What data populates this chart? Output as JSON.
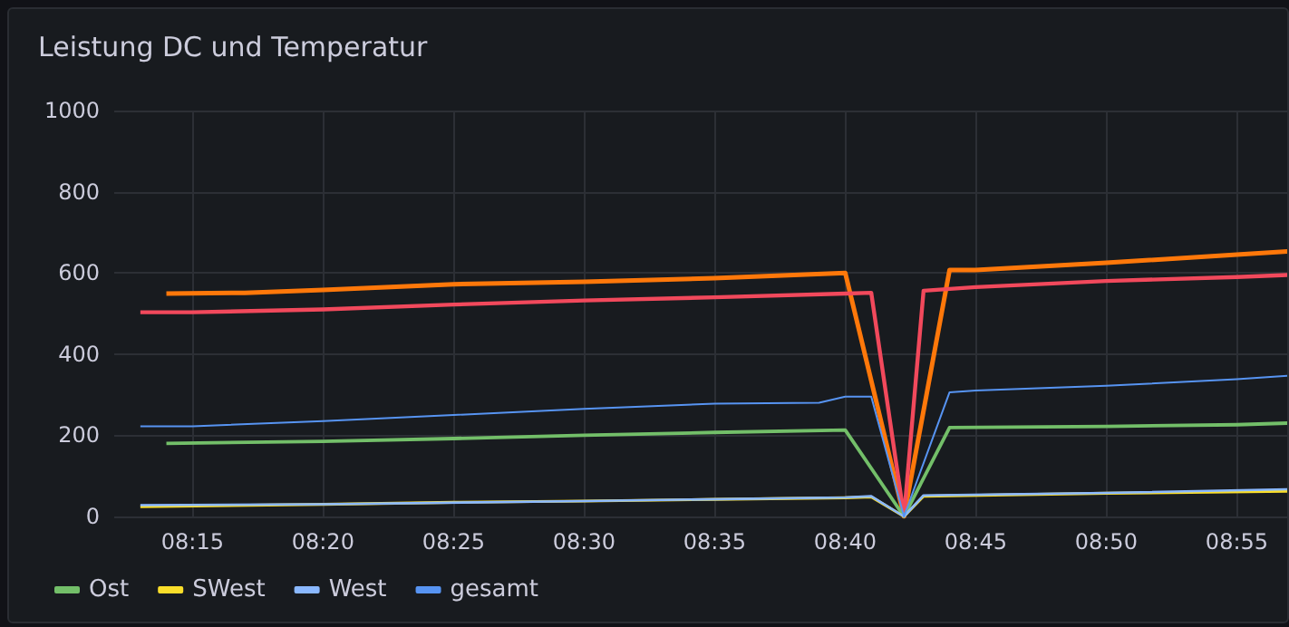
{
  "chart_data": {
    "type": "line",
    "title": "Leistung DC und Temperatur",
    "xlim": [
      8.2,
      8.95
    ],
    "xticks": [
      {
        "value": 8.25,
        "label": "08:15"
      },
      {
        "value": 8.3333,
        "label": "08:20"
      },
      {
        "value": 8.4167,
        "label": "08:25"
      },
      {
        "value": 8.5,
        "label": "08:30"
      },
      {
        "value": 8.5833,
        "label": "08:35"
      },
      {
        "value": 8.6667,
        "label": "08:40"
      },
      {
        "value": 8.75,
        "label": "08:45"
      },
      {
        "value": 8.8333,
        "label": "08:50"
      },
      {
        "value": 8.9167,
        "label": "08:55"
      }
    ],
    "ylim": [
      0,
      1000
    ],
    "yticks": [
      0,
      200,
      400,
      600,
      800,
      1000
    ],
    "grid": true,
    "legend": "bottom left",
    "marker": "none",
    "line_style": "solid",
    "series": [
      {
        "color": "#ff780a",
        "x": [
          8.2333,
          8.2833,
          8.3333,
          8.4167,
          8.5,
          8.5833,
          8.6667,
          8.7042,
          8.7333,
          8.75,
          8.8333,
          8.9167,
          8.95
        ],
        "values": [
          549,
          551,
          558,
          572,
          578,
          587,
          600,
          0,
          607,
          607,
          625,
          645,
          653
        ]
      },
      {
        "color": "#f2495c",
        "x": [
          8.2167,
          8.25,
          8.3333,
          8.4167,
          8.5,
          8.5833,
          8.6667,
          8.6833,
          8.7042,
          8.7167,
          8.75,
          8.8333,
          8.9167,
          8.95
        ],
        "values": [
          503,
          503,
          510,
          522,
          532,
          540,
          549,
          551,
          0,
          556,
          565,
          580,
          590,
          595
        ]
      },
      {
        "name": "Ost",
        "color": "#73bf69",
        "x": [
          8.2333,
          8.3333,
          8.4167,
          8.5,
          8.5833,
          8.6667,
          8.7042,
          8.7333,
          8.8333,
          8.9167,
          8.95
        ],
        "values": [
          180,
          185,
          192,
          200,
          207,
          213,
          0,
          219,
          222,
          226,
          230
        ]
      },
      {
        "name": "SWest",
        "color": "#fade2a",
        "x": [
          8.2167,
          8.3333,
          8.4167,
          8.5,
          8.5833,
          8.6667,
          8.6833,
          8.7042,
          8.7167,
          8.8333,
          8.95
        ],
        "values": [
          24,
          30,
          35,
          38,
          42,
          46,
          48,
          0,
          50,
          57,
          62
        ]
      },
      {
        "name": "West",
        "color": "#8ab8ff",
        "x": [
          8.2167,
          8.3333,
          8.5,
          8.6667,
          8.6833,
          8.7042,
          8.7167,
          8.8333,
          8.95
        ],
        "values": [
          28,
          30,
          38,
          47,
          50,
          0,
          52,
          58,
          67
        ]
      },
      {
        "name": "gesamt",
        "color": "#5794f2",
        "x": [
          8.2167,
          8.25,
          8.3333,
          8.4167,
          8.5,
          8.5833,
          8.65,
          8.6667,
          8.6833,
          8.7042,
          8.7333,
          8.75,
          8.8333,
          8.9167,
          8.95
        ],
        "values": [
          222,
          222,
          235,
          250,
          265,
          278,
          280,
          295,
          295,
          0,
          306,
          310,
          322,
          338,
          347
        ]
      }
    ]
  }
}
